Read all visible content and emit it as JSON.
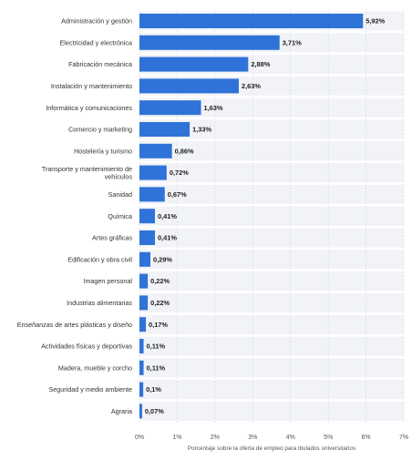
{
  "chart_data": {
    "type": "bar",
    "orientation": "horizontal",
    "categories": [
      "Administración y gestión",
      "Electricidad y electrónica",
      "Fabricación mecánica",
      "Instalación y mantenimiento",
      "Informática y comunicaciones",
      "Comercio y marketing",
      "Hostelería y turismo",
      "Transporte y mantenimiento de vehículos",
      "Sanidad",
      "Química",
      "Artes gráficas",
      "Edificación y obra civil",
      "Imagen personal",
      "Industrias alimentarias",
      "Enseñanzas de artes plásticas y diseño",
      "Actividades físicas y deportivas",
      "Madera, mueble y corcho",
      "Seguridad y medio ambiente",
      "Agraria"
    ],
    "category_lines": [
      [
        "Administración y gestión"
      ],
      [
        "Electricidad y electrónica"
      ],
      [
        "Fabricación mecánica"
      ],
      [
        "Instalación y mantenimiento"
      ],
      [
        "Informática y comunicaciones"
      ],
      [
        "Comercio y marketing"
      ],
      [
        "Hostelería y turismo"
      ],
      [
        "Transporte y mantenimiento de",
        "vehículos"
      ],
      [
        "Sanidad"
      ],
      [
        "Química"
      ],
      [
        "Artes gráficas"
      ],
      [
        "Edificación y obra civil"
      ],
      [
        "Imagen personal"
      ],
      [
        "Industrias alimentarias"
      ],
      [
        "Enseñanzas de artes plásticas y diseño"
      ],
      [
        "Actividades físicas y deportivas"
      ],
      [
        "Madera, mueble y corcho"
      ],
      [
        "Seguridad y medio ambiente"
      ],
      [
        "Agraria"
      ]
    ],
    "values": [
      5.92,
      3.71,
      2.88,
      2.63,
      1.63,
      1.33,
      0.86,
      0.72,
      0.67,
      0.41,
      0.41,
      0.29,
      0.22,
      0.22,
      0.17,
      0.11,
      0.11,
      0.1,
      0.07
    ],
    "value_labels": [
      "5,92%",
      "3,71%",
      "2,88%",
      "2,63%",
      "1,63%",
      "1,33%",
      "0,86%",
      "0,72%",
      "0,67%",
      "0,41%",
      "0,41%",
      "0,29%",
      "0,22%",
      "0,22%",
      "0,17%",
      "0,11%",
      "0,11%",
      "0,1%",
      "0,07%"
    ],
    "xlabel": "Porcentaje sobre la oferta de empleo para titulados universitarios",
    "ylabel": "",
    "xlim": [
      0,
      7
    ],
    "xticks": [
      0,
      1,
      2,
      3,
      4,
      5,
      6,
      7
    ],
    "xtick_labels": [
      "0%",
      "1%",
      "2%",
      "3%",
      "4%",
      "5%",
      "6%",
      "7%"
    ],
    "grid": true,
    "legend": "none",
    "bar_color": "#2f73d9",
    "band_color": "#f1f3f7",
    "grid_color": "#cfd6e0"
  }
}
